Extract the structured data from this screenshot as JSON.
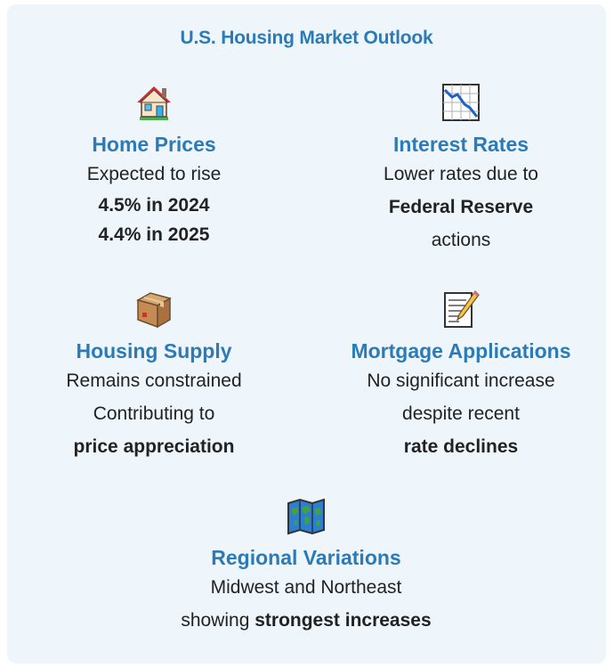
{
  "title": "U.S. Housing Market Outlook",
  "sections": {
    "home_prices": {
      "icon": "house-icon",
      "heading": "Home Prices",
      "line1": "Expected to rise",
      "line2": "4.5% in 2024",
      "line3": "4.4% in 2025"
    },
    "interest_rates": {
      "icon": "chart-decreasing-icon",
      "heading": "Interest Rates",
      "line1": "Lower rates due to",
      "line2": "Federal Reserve",
      "line3": "actions"
    },
    "housing_supply": {
      "icon": "package-icon",
      "heading": "Housing Supply",
      "line1": "Remains constrained",
      "line2": "Contributing to",
      "line3": "price appreciation"
    },
    "mortgage_applications": {
      "icon": "memo-icon",
      "heading": "Mortgage Applications",
      "line1": "No significant increase",
      "line2": "despite recent",
      "line3": "rate declines"
    },
    "regional_variations": {
      "icon": "world-map-icon",
      "heading": "Regional Variations",
      "line1": "Midwest and Northeast",
      "line2_prefix": "showing ",
      "line2_bold": "strongest increases"
    }
  },
  "colors": {
    "background": "#eef6fc",
    "accent": "#2c7bb6",
    "text": "#222222"
  }
}
